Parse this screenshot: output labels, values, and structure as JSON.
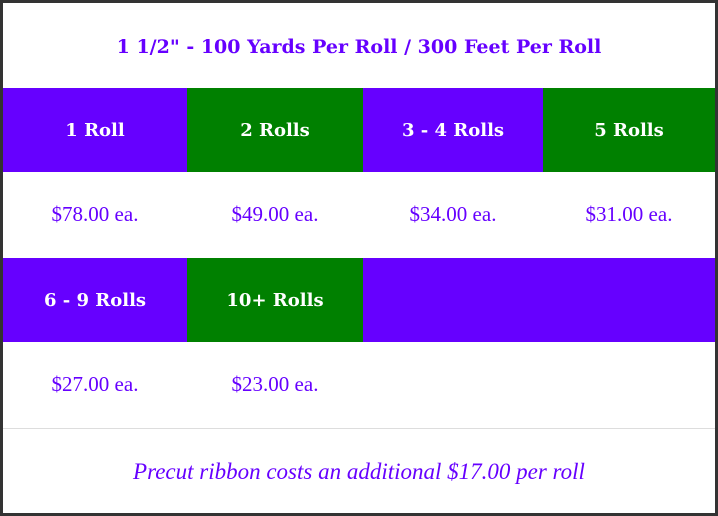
{
  "title": "1 1/2\" - 100 Yards Per Roll / 300 Feet Per Roll",
  "tiers_row1": [
    {
      "label": "1 Roll",
      "price": "$78.00 ea.",
      "color": "#6600ff"
    },
    {
      "label": "2 Rolls",
      "price": "$49.00 ea.",
      "color": "#008000"
    },
    {
      "label": "3 - 4 Rolls",
      "price": "$34.00 ea.",
      "color": "#6600ff"
    },
    {
      "label": "5 Rolls",
      "price": "$31.00 ea.",
      "color": "#008000"
    }
  ],
  "tiers_row2": [
    {
      "label": "6 - 9 Rolls",
      "price": "$27.00 ea.",
      "color": "#6600ff"
    },
    {
      "label": "10+ Rolls",
      "price": "$23.00 ea.",
      "color": "#008000"
    }
  ],
  "footer_note": "Precut ribbon costs an additional $17.00 per roll"
}
